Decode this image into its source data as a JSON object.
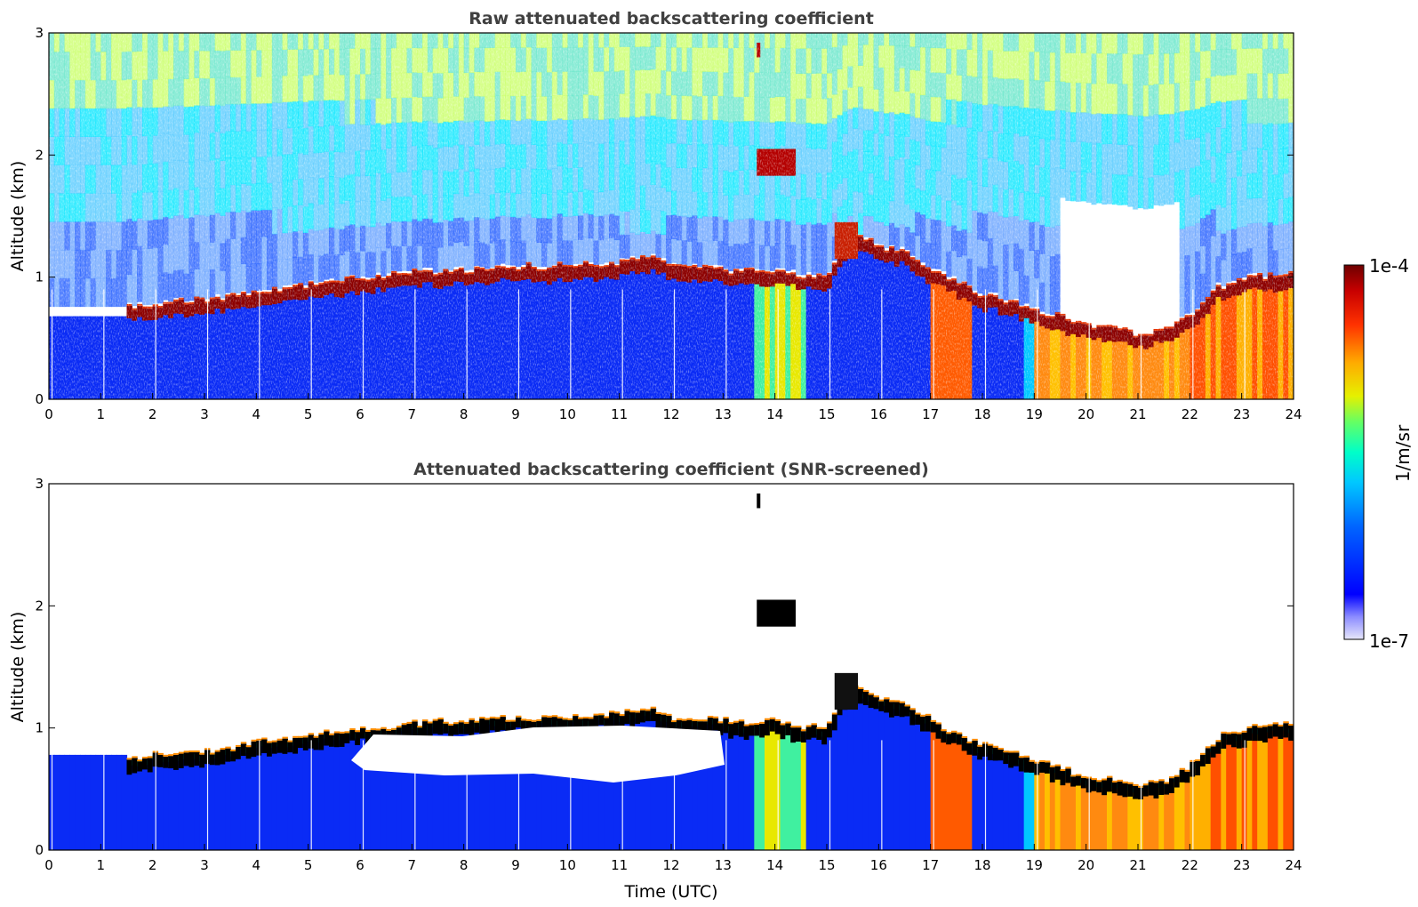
{
  "chart_data": [
    {
      "type": "heatmap",
      "title": "Raw attenuated backscattering coefficient",
      "xlabel": "",
      "ylabel": "Altitude (km)",
      "xlim": [
        0,
        24
      ],
      "ylim": [
        0,
        3
      ],
      "x_ticks": [
        "0",
        "1",
        "2",
        "3",
        "4",
        "5",
        "6",
        "7",
        "8",
        "9",
        "10",
        "11",
        "12",
        "13",
        "14",
        "15",
        "16",
        "17",
        "18",
        "19",
        "20",
        "21",
        "22",
        "23",
        "24"
      ],
      "y_ticks": [
        "0",
        "1",
        "2",
        "3"
      ],
      "layer_top_km": [
        [
          1.5,
          0.7
        ],
        [
          2,
          0.72
        ],
        [
          3,
          0.75
        ],
        [
          4,
          0.82
        ],
        [
          5,
          0.88
        ],
        [
          6,
          0.93
        ],
        [
          7,
          0.97
        ],
        [
          8,
          1.0
        ],
        [
          9,
          1.02
        ],
        [
          10,
          1.03
        ],
        [
          11,
          1.05
        ],
        [
          11.5,
          1.12
        ],
        [
          12,
          1.03
        ],
        [
          13,
          1.0
        ],
        [
          13.5,
          0.98
        ],
        [
          14,
          1.0
        ],
        [
          14.5,
          0.95
        ],
        [
          15,
          0.95
        ],
        [
          15.5,
          1.3
        ],
        [
          16,
          1.2
        ],
        [
          16.5,
          1.15
        ],
        [
          17,
          1.0
        ],
        [
          17.5,
          0.9
        ],
        [
          18,
          0.8
        ],
        [
          18.5,
          0.75
        ],
        [
          19,
          0.68
        ],
        [
          20,
          0.55
        ],
        [
          21,
          0.48
        ],
        [
          21.5,
          0.5
        ],
        [
          22,
          0.62
        ],
        [
          22.5,
          0.85
        ],
        [
          23,
          0.92
        ],
        [
          23.5,
          0.95
        ],
        [
          24,
          0.97
        ]
      ],
      "colorbar": {
        "min_label": "1e-7",
        "max_label": "1e-4",
        "label": "1/m/sr",
        "scale": "log"
      }
    },
    {
      "type": "heatmap",
      "title": "Attenuated backscattering coefficient (SNR-screened)",
      "xlabel": "Time (UTC)",
      "ylabel": "Altitude (km)",
      "xlim": [
        0,
        24
      ],
      "ylim": [
        0,
        3
      ],
      "x_ticks": [
        "0",
        "1",
        "2",
        "3",
        "4",
        "5",
        "6",
        "7",
        "8",
        "9",
        "10",
        "11",
        "12",
        "13",
        "14",
        "15",
        "16",
        "17",
        "18",
        "19",
        "20",
        "21",
        "22",
        "23",
        "24"
      ],
      "y_ticks": [
        "0",
        "1",
        "2",
        "3"
      ],
      "colorbar": {
        "min_label": "1e-7",
        "max_label": "1e-4",
        "label": "1/m/sr",
        "scale": "log"
      }
    }
  ],
  "colors": {
    "colormap": [
      "#e6e6fa",
      "#0000ff",
      "#0096ff",
      "#00e6e6",
      "#00ff64",
      "#c8ff00",
      "#ffd700",
      "#ff6400",
      "#e60000",
      "#780000"
    ],
    "text": "#000000",
    "title_text": "#404040"
  }
}
